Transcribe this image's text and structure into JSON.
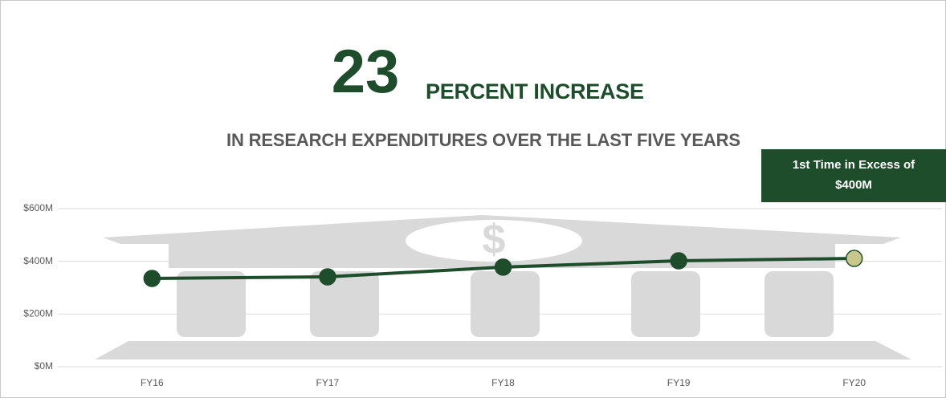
{
  "chart_data": {
    "type": "line",
    "headline_number": "23",
    "title": "PERCENT INCREASE",
    "subtitle": "IN RESEARCH EXPENDITURES OVER THE LAST FIVE YEARS",
    "annotation": [
      "1st Time in Excess of",
      "$400M"
    ],
    "categories": [
      "FY16",
      "FY17",
      "FY18",
      "FY19",
      "FY20"
    ],
    "series": [
      {
        "color": "#1e4d2b",
        "values": [
          335,
          341,
          378,
          402,
          411
        ],
        "marker_colors": [
          "#1e4d2b",
          "#1e4d2b",
          "#1e4d2b",
          "#1e4d2b",
          "#c8c88c"
        ]
      }
    ],
    "ylim": [
      0,
      600
    ],
    "yticks": [
      {
        "value": 0,
        "label": "$0M"
      },
      {
        "value": 200,
        "label": "$200M"
      },
      {
        "value": 400,
        "label": "$400M"
      },
      {
        "value": 600,
        "label": "$600M"
      }
    ],
    "grid": true
  }
}
